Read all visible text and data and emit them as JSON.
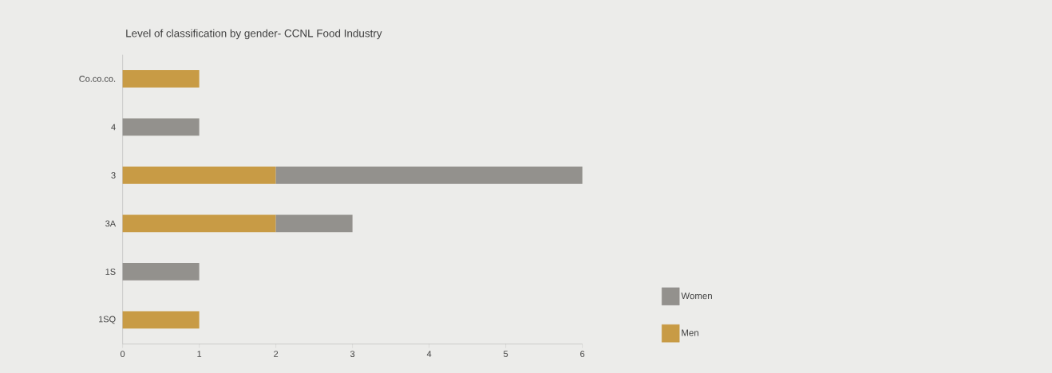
{
  "chart_data": {
    "type": "bar",
    "orientation": "horizontal",
    "stacked": true,
    "title": "Level of classification by gender- CCNL Food Industry",
    "categories": [
      "Co.co.co.",
      "4",
      "3",
      "3A",
      "1S",
      "1SQ"
    ],
    "series": [
      {
        "name": "Men",
        "color": "#c89b45",
        "values": [
          1,
          null,
          2,
          2,
          null,
          1
        ]
      },
      {
        "name": "Women",
        "color": "#93918d",
        "values": [
          null,
          1,
          4,
          1,
          1,
          null
        ]
      }
    ],
    "xlim": [
      0,
      6
    ],
    "xticks": [
      0,
      1,
      2,
      3,
      4,
      5,
      6
    ],
    "grid": false,
    "legend": "bottom right"
  }
}
